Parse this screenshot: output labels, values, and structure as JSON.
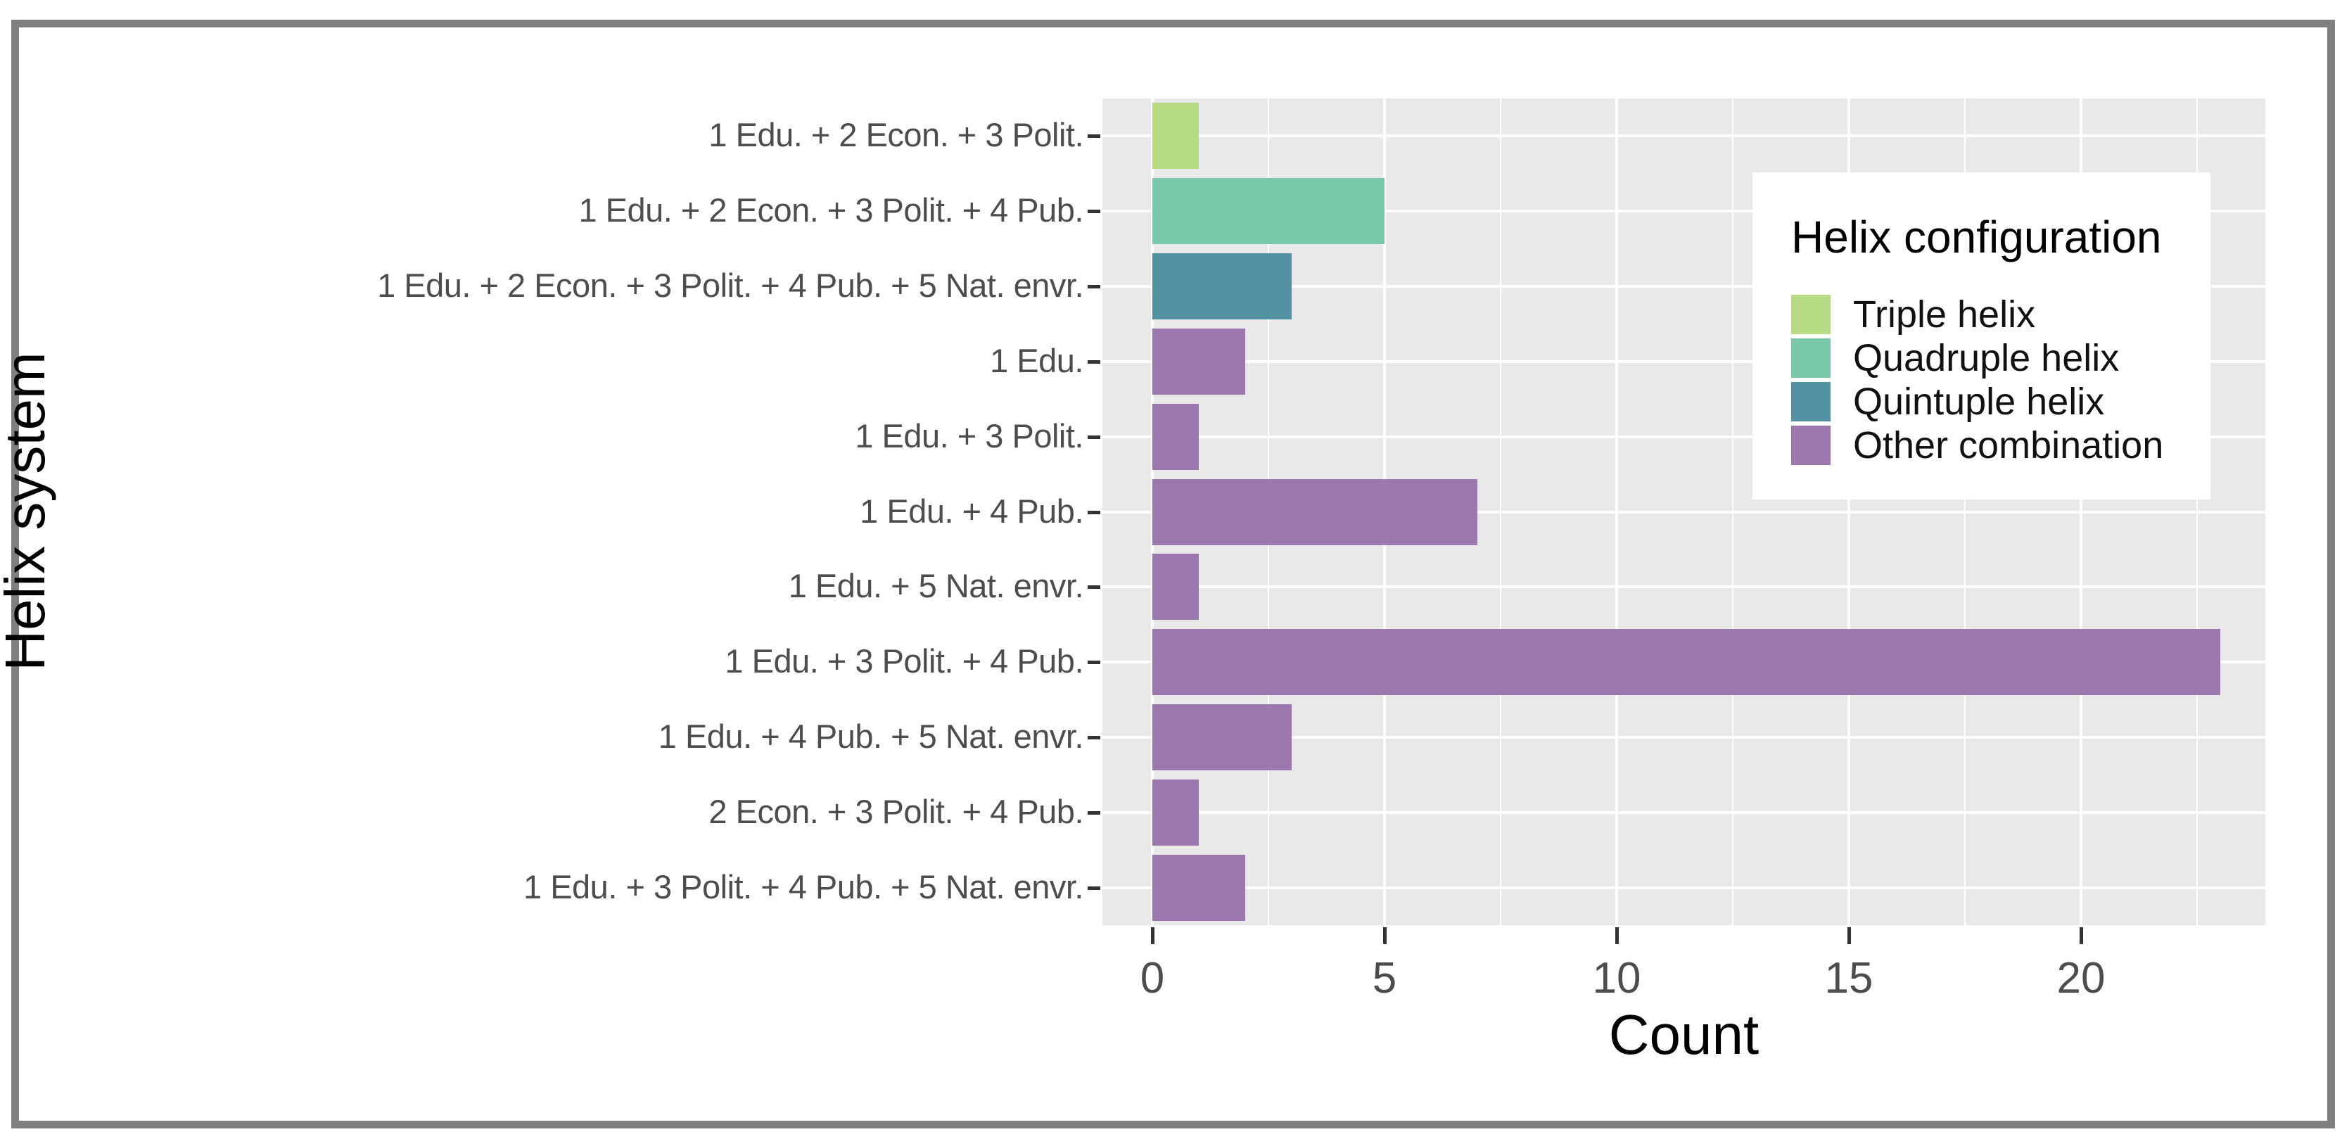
{
  "chart_data": {
    "type": "bar",
    "orientation": "horizontal",
    "xlabel": "Count",
    "ylabel": "Helix system",
    "x_ticks": [
      0,
      5,
      10,
      15,
      20
    ],
    "x_minor_ticks": [
      2.5,
      7.5,
      12.5,
      17.5,
      22.5
    ],
    "xlim": [
      -1.15,
      24.15
    ],
    "grid": "on",
    "rows": [
      {
        "category": "1 Edu. + 2 Econ. + 3 Polit.",
        "value": 1,
        "config": "Triple helix"
      },
      {
        "category": "1 Edu. + 2 Econ. + 3 Polit. + 4 Pub.",
        "value": 5,
        "config": "Quadruple helix"
      },
      {
        "category": "1 Edu. + 2 Econ. + 3 Polit. + 4 Pub. + 5 Nat. envr.",
        "value": 3,
        "config": "Quintuple helix"
      },
      {
        "category": "1 Edu.",
        "value": 2,
        "config": "Other combination"
      },
      {
        "category": "1 Edu. + 3 Polit.",
        "value": 1,
        "config": "Other combination"
      },
      {
        "category": "1 Edu. + 4 Pub.",
        "value": 7,
        "config": "Other combination"
      },
      {
        "category": "1 Edu. + 5 Nat. envr.",
        "value": 1,
        "config": "Other combination"
      },
      {
        "category": "1 Edu. + 3 Polit. + 4 Pub.",
        "value": 23,
        "config": "Other combination"
      },
      {
        "category": "1 Edu. + 4 Pub. + 5 Nat. envr.",
        "value": 3,
        "config": "Other combination"
      },
      {
        "category": "2 Econ. + 3 Polit. + 4 Pub.",
        "value": 1,
        "config": "Other combination"
      },
      {
        "category": "1 Edu. + 3 Polit. + 4 Pub. + 5 Nat. envr.",
        "value": 2,
        "config": "Other combination"
      }
    ],
    "legend": {
      "title": "Helix configuration",
      "position": "inside-right",
      "entries": [
        {
          "label": "Triple helix",
          "color": "#b7db84"
        },
        {
          "label": "Quadruple helix",
          "color": "#79c8aa"
        },
        {
          "label": "Quintuple helix",
          "color": "#5292a3"
        },
        {
          "label": "Other combination",
          "color": "#9d78ae"
        }
      ]
    },
    "colors": {
      "panel_background": "#e9e9e9",
      "gridline": "#ffffff",
      "tick_mark": "#333333",
      "tick_label": "#4d4d4d",
      "axis_title": "#000000",
      "frame_border": "#7f7f7f"
    }
  }
}
